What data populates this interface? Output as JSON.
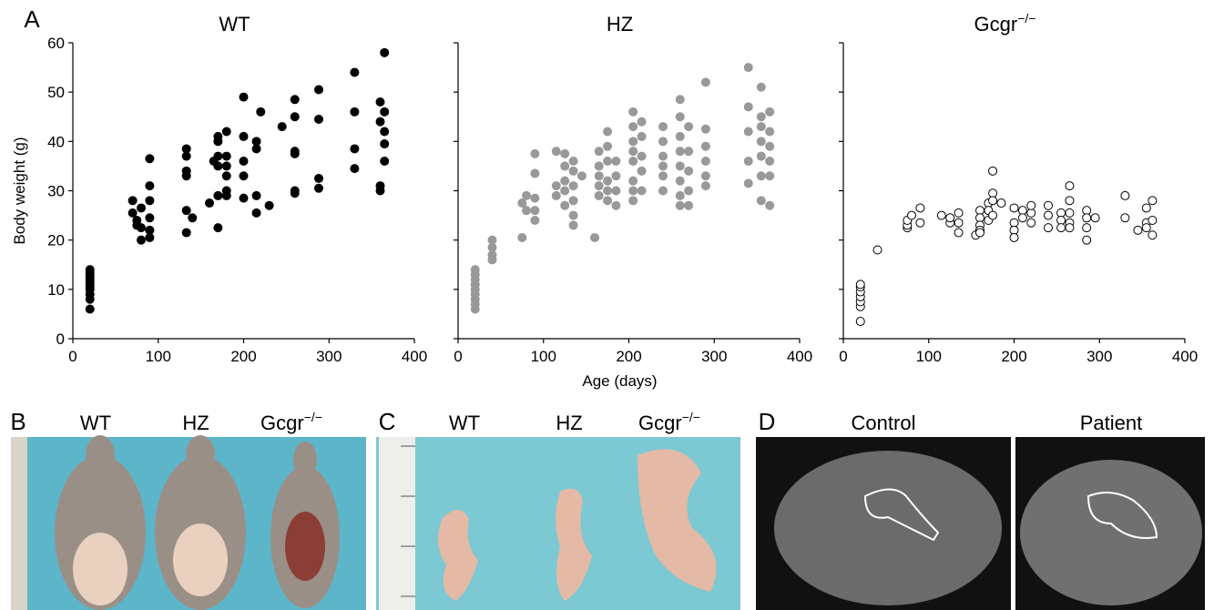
{
  "chart_data": [
    {
      "type": "scatter",
      "title": "WT",
      "ylabel": "Body weight (g)",
      "color": "#000000",
      "fill": "#000000",
      "xlim": [
        0,
        400
      ],
      "xticks": [
        0,
        100,
        200,
        300,
        400
      ],
      "ylim": [
        0,
        60
      ],
      "yticks": [
        0,
        10,
        20,
        30,
        40,
        50,
        60
      ],
      "x": [
        20,
        20,
        20,
        20,
        20,
        20,
        20,
        20,
        20,
        20,
        20,
        20,
        70,
        70,
        75,
        75,
        80,
        80,
        80,
        90,
        90,
        90,
        90,
        90,
        90,
        133,
        133,
        133,
        133,
        133,
        133,
        140,
        160,
        165,
        170,
        170,
        170,
        170,
        170,
        170,
        180,
        180,
        180,
        180,
        180,
        180,
        200,
        200,
        200,
        200,
        200,
        215,
        215,
        215,
        215,
        220,
        230,
        245,
        260,
        260,
        260,
        260,
        260,
        260,
        288,
        288,
        288,
        288,
        330,
        330,
        330,
        330,
        360,
        360,
        360,
        360,
        365,
        365,
        365,
        365,
        365
      ],
      "values": [
        6,
        8,
        9,
        10,
        10.5,
        11,
        11.5,
        12,
        12.5,
        13,
        13.5,
        14,
        28,
        25.5,
        24,
        23,
        22.5,
        20,
        26.5,
        36.5,
        31,
        28,
        24.5,
        22,
        20.5,
        38.5,
        37,
        34,
        33,
        26,
        21.5,
        24.5,
        27.5,
        36,
        41,
        40,
        37,
        35,
        29,
        22.5,
        42,
        37,
        35,
        33,
        30,
        29,
        49,
        41,
        36,
        33,
        28.5,
        40,
        38.5,
        29,
        25.5,
        46,
        27,
        43,
        48.5,
        45,
        38,
        37.5,
        30,
        29.5,
        50.5,
        44.5,
        32.5,
        30.5,
        54,
        46,
        38.5,
        34.5,
        48,
        44,
        31,
        30,
        58,
        46,
        42,
        39.5,
        36
      ]
    },
    {
      "type": "scatter",
      "title": "HZ",
      "xlabel": "Age (days)",
      "color": "#999999",
      "fill": "#999999",
      "xlim": [
        0,
        400
      ],
      "xticks": [
        0,
        100,
        200,
        300,
        400
      ],
      "ylim": [
        0,
        60
      ],
      "yticks": [
        0,
        10,
        20,
        30,
        40,
        50,
        60
      ],
      "x": [
        20,
        20,
        20,
        20,
        20,
        20,
        20,
        20,
        20,
        40,
        40,
        40,
        40,
        75,
        75,
        80,
        80,
        90,
        90,
        90,
        90,
        90,
        115,
        115,
        115,
        125,
        125,
        125,
        125,
        125,
        135,
        135,
        135,
        135,
        135,
        135,
        145,
        160,
        165,
        165,
        165,
        165,
        165,
        175,
        175,
        175,
        175,
        175,
        175,
        185,
        185,
        185,
        185,
        205,
        205,
        205,
        205,
        205,
        205,
        205,
        205,
        215,
        215,
        215,
        215,
        215,
        240,
        240,
        240,
        240,
        240,
        240,
        260,
        260,
        260,
        260,
        260,
        260,
        260,
        260,
        270,
        270,
        270,
        270,
        270,
        290,
        290,
        290,
        290,
        290,
        290,
        340,
        340,
        340,
        340,
        340,
        355,
        355,
        355,
        355,
        355,
        355,
        355,
        365,
        365,
        365,
        365,
        365,
        365
      ],
      "values": [
        6,
        7,
        8,
        9,
        10,
        11,
        12,
        13,
        14,
        20,
        18.5,
        17,
        16,
        27.5,
        20.5,
        29,
        26,
        37.5,
        33.5,
        28.5,
        26,
        24,
        38,
        31,
        29,
        37.5,
        35,
        32,
        30,
        27,
        36,
        34,
        31,
        28,
        25,
        23,
        33,
        20.5,
        38,
        35,
        33,
        31,
        29,
        42,
        39,
        36,
        32,
        30,
        28,
        36,
        33,
        30,
        27,
        46,
        43,
        40,
        38,
        36,
        32,
        30,
        28,
        44,
        41,
        37,
        34,
        30,
        43,
        40,
        37,
        35,
        33,
        30,
        48.5,
        45,
        41,
        38,
        35,
        32,
        29,
        27,
        43,
        38,
        34,
        30,
        27,
        52,
        42.5,
        39,
        36,
        33,
        31,
        55,
        47,
        42,
        36,
        31.5,
        51,
        45,
        43,
        40,
        37,
        33,
        28,
        46,
        42,
        39,
        36,
        33,
        27
      ]
    },
    {
      "type": "scatter",
      "title": "Gcgr",
      "title_sup": "−/−",
      "color": "#000000",
      "fill": "#ffffff",
      "xlim": [
        0,
        400
      ],
      "xticks": [
        0,
        100,
        200,
        300,
        400
      ],
      "ylim": [
        0,
        60
      ],
      "yticks": [
        0,
        10,
        20,
        30,
        40,
        50,
        60
      ],
      "x": [
        20,
        20,
        20,
        20,
        20,
        20,
        20,
        40,
        75,
        75,
        75,
        80,
        90,
        90,
        115,
        125,
        125,
        135,
        135,
        135,
        155,
        160,
        160,
        160,
        160,
        160,
        170,
        170,
        170,
        175,
        175,
        175,
        175,
        185,
        200,
        200,
        200,
        200,
        210,
        210,
        220,
        220,
        220,
        240,
        240,
        240,
        255,
        255,
        255,
        265,
        265,
        265,
        265,
        265,
        285,
        285,
        285,
        285,
        295,
        330,
        330,
        345,
        355,
        355,
        355,
        362,
        362,
        362
      ],
      "values": [
        3.5,
        6.5,
        7.5,
        8.5,
        9.5,
        10.5,
        11,
        18,
        22.5,
        23,
        24,
        25,
        26.5,
        23.5,
        25,
        23.5,
        24.5,
        25.5,
        23.5,
        21.5,
        21,
        26,
        24.5,
        23,
        22,
        21.5,
        27.5,
        26,
        24,
        34,
        29.5,
        28,
        25,
        27.5,
        26.5,
        23.5,
        22,
        20.5,
        26,
        24.5,
        25.5,
        23.5,
        27,
        27,
        25,
        22.5,
        25.5,
        24,
        22.5,
        31,
        28,
        25.5,
        23.5,
        22.5,
        26,
        24.5,
        22.5,
        20,
        24.5,
        29,
        24.5,
        22,
        26.5,
        23.5,
        22.5,
        28,
        24,
        21
      ]
    }
  ],
  "panel_letters": [
    "A",
    "B",
    "C",
    "D"
  ],
  "photos": [
    {
      "labels": [
        {
          "text": "WT"
        },
        {
          "text": "HZ"
        },
        {
          "text": "Gcgr",
          "sup": "−/−"
        }
      ]
    },
    {
      "labels": [
        {
          "text": "WT"
        },
        {
          "text": "HZ"
        },
        {
          "text": "Gcgr",
          "sup": "−/−"
        }
      ]
    },
    {
      "labels": [
        {
          "text": "Control"
        },
        {
          "text": "Patient"
        }
      ]
    }
  ]
}
